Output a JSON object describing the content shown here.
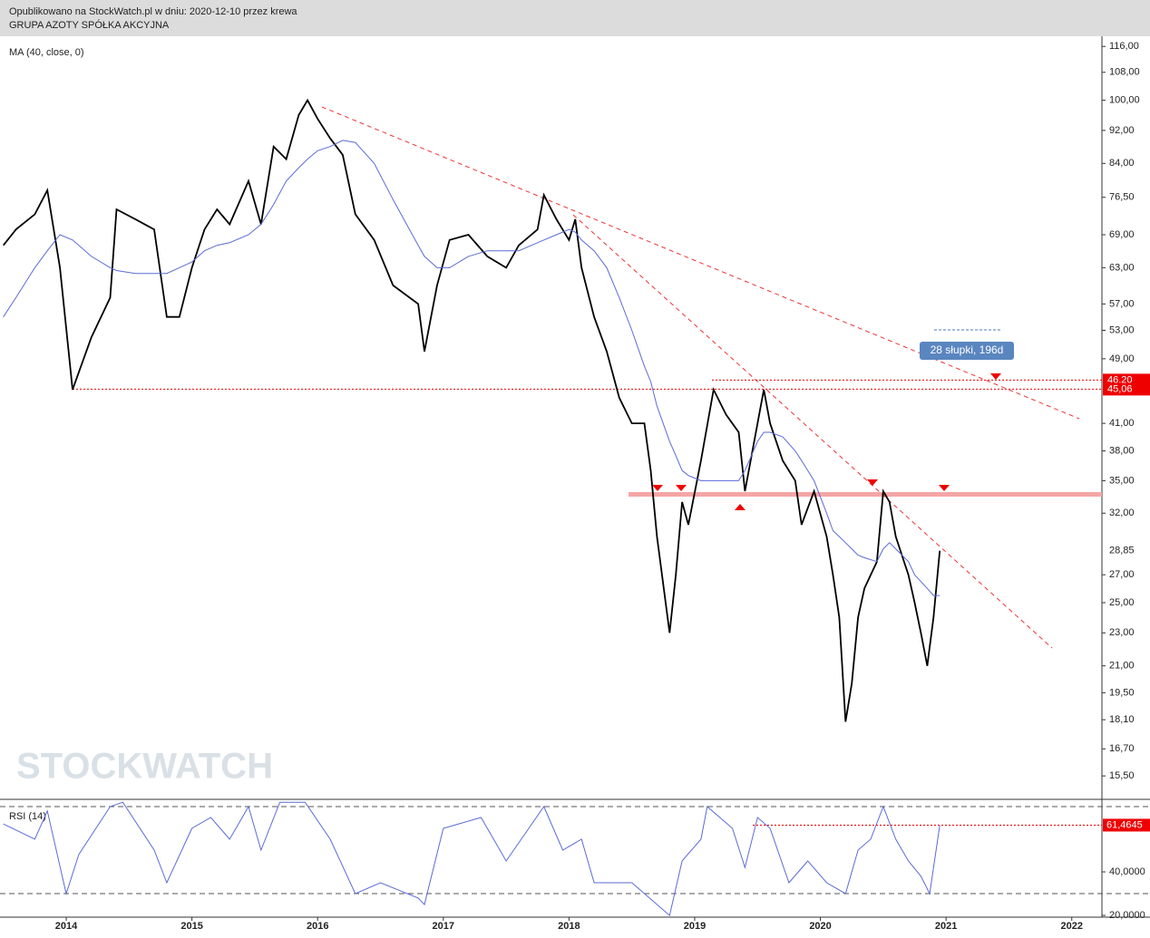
{
  "header": {
    "line1": "Opublikowano na StockWatch.pl w dniu: 2020-12-10 przez krewa",
    "line2": "GRUPA AZOTY SPÓŁKA AKCYJNA"
  },
  "watermark": "STOCKWATCH",
  "chart_data": [
    {
      "type": "line",
      "log_scale": true,
      "x": [
        2013.5,
        2013.6,
        2013.75,
        2013.85,
        2013.95,
        2014.05,
        2014.2,
        2014.35,
        2014.4,
        2014.55,
        2014.7,
        2014.8,
        2014.9,
        2015.0,
        2015.1,
        2015.2,
        2015.3,
        2015.45,
        2015.55,
        2015.65,
        2015.75,
        2015.85,
        2015.92,
        2016.0,
        2016.1,
        2016.2,
        2016.3,
        2016.45,
        2016.6,
        2016.8,
        2016.85,
        2016.95,
        2017.05,
        2017.2,
        2017.35,
        2017.5,
        2017.6,
        2017.75,
        2017.8,
        2017.9,
        2018.0,
        2018.05,
        2018.1,
        2018.2,
        2018.3,
        2018.4,
        2018.5,
        2018.6,
        2018.65,
        2018.7,
        2018.8,
        2018.85,
        2018.9,
        2018.95,
        2019.05,
        2019.15,
        2019.25,
        2019.35,
        2019.4,
        2019.5,
        2019.55,
        2019.6,
        2019.7,
        2019.8,
        2019.85,
        2019.95,
        2020.05,
        2020.1,
        2020.15,
        2020.2,
        2020.25,
        2020.3,
        2020.35,
        2020.45,
        2020.5,
        2020.55,
        2020.6,
        2020.7,
        2020.75,
        2020.8,
        2020.85,
        2020.9,
        2020.95
      ],
      "series": [
        {
          "color": "#000000",
          "values": [
            67,
            70,
            73,
            78,
            63,
            45,
            52,
            58,
            74,
            72,
            70,
            55,
            55,
            63,
            70,
            74,
            71,
            80,
            71,
            88,
            85,
            96,
            100,
            95,
            90,
            86,
            73,
            68,
            60,
            57,
            50,
            60,
            68,
            69,
            65,
            63,
            67,
            70,
            77,
            72,
            68,
            72,
            63,
            55,
            50,
            44,
            41,
            41,
            36,
            30,
            23,
            27,
            33,
            31,
            37,
            45,
            42,
            40,
            34,
            41,
            45,
            41,
            37,
            35,
            31,
            34,
            30,
            27,
            24,
            18,
            20,
            24,
            26,
            28,
            34,
            33,
            30,
            27,
            25,
            23,
            21,
            24,
            28.85
          ]
        },
        {
          "name": "MA (40, close, 0)",
          "color": "#5b6bd6",
          "values": [
            55,
            58,
            63,
            66,
            69,
            68,
            65,
            63,
            62.5,
            62,
            62,
            62,
            63,
            64,
            66,
            67,
            67.5,
            69,
            71,
            75,
            80,
            83,
            85,
            87,
            88,
            89.5,
            89,
            84,
            76,
            67,
            65,
            63,
            63,
            65,
            66,
            66,
            66,
            67.5,
            68,
            69,
            70,
            69.5,
            68,
            66,
            63,
            58,
            53,
            48,
            46,
            43,
            39,
            37.5,
            36,
            35.5,
            35,
            35,
            35,
            35,
            36,
            39,
            40,
            40,
            39.5,
            38,
            37,
            35,
            32,
            30.5,
            30,
            29.5,
            29,
            28.5,
            28.3,
            28,
            29,
            29.5,
            29,
            28,
            27,
            26.5,
            26,
            25.5,
            25.5
          ]
        }
      ],
      "xlim": [
        2013.473,
        2022.24
      ],
      "xticks": [
        2014,
        2015,
        2016,
        2017,
        2018,
        2019,
        2020,
        2021,
        2022
      ],
      "ylim": [
        14.53,
        119.3
      ],
      "yticks": [
        {
          "value": 116,
          "label": "116,00"
        },
        {
          "value": 108,
          "label": "108,00"
        },
        {
          "value": 100,
          "label": "100,00"
        },
        {
          "value": 92,
          "label": "92,00"
        },
        {
          "value": 84,
          "label": "84,00"
        },
        {
          "value": 76.5,
          "label": "76,50"
        },
        {
          "value": 69,
          "label": "69,00"
        },
        {
          "value": 63,
          "label": "63,00"
        },
        {
          "value": 57,
          "label": "57,00"
        },
        {
          "value": 53,
          "label": "53,00"
        },
        {
          "value": 49,
          "label": "49,00"
        },
        {
          "value": 41,
          "label": "41,00"
        },
        {
          "value": 38,
          "label": "38,00"
        },
        {
          "value": 35,
          "label": "35,00"
        },
        {
          "value": 32,
          "label": "32,00"
        },
        {
          "value": 27,
          "label": "27,00"
        },
        {
          "value": 25,
          "label": "25,00"
        },
        {
          "value": 23,
          "label": "23,00"
        },
        {
          "value": 21,
          "label": "21,00"
        },
        {
          "value": 19.5,
          "label": "19,50"
        },
        {
          "value": 18.1,
          "label": "18,10"
        },
        {
          "value": 16.7,
          "label": "16,70"
        },
        {
          "value": 15.5,
          "label": "15,50"
        }
      ],
      "last_price": {
        "value": 28.85,
        "label": "28,85"
      },
      "hlines": [
        {
          "value": 46.2,
          "label": "46,20"
        },
        {
          "value": 45.06,
          "label": "45,06"
        }
      ],
      "annotation": "28 słupki, 196d"
    },
    {
      "type": "line",
      "title": "RSI (14)",
      "x": [
        2013.5,
        2013.75,
        2013.85,
        2014.0,
        2014.1,
        2014.35,
        2014.45,
        2014.7,
        2014.8,
        2015.0,
        2015.15,
        2015.3,
        2015.45,
        2015.55,
        2015.7,
        2015.9,
        2016.1,
        2016.3,
        2016.5,
        2016.8,
        2016.85,
        2017.0,
        2017.3,
        2017.5,
        2017.8,
        2017.95,
        2018.1,
        2018.2,
        2018.5,
        2018.8,
        2018.9,
        2019.05,
        2019.1,
        2019.3,
        2019.4,
        2019.5,
        2019.6,
        2019.75,
        2019.9,
        2020.05,
        2020.2,
        2020.3,
        2020.4,
        2020.5,
        2020.6,
        2020.7,
        2020.8,
        2020.87,
        2020.95
      ],
      "series": [
        {
          "color": "#5b6bd6",
          "values": [
            62,
            55,
            68,
            30,
            48,
            70,
            72,
            50,
            35,
            60,
            65,
            55,
            70,
            50,
            72,
            72,
            55,
            30,
            35,
            28,
            25,
            60,
            65,
            45,
            70,
            50,
            55,
            35,
            35,
            20,
            45,
            55,
            70,
            60,
            42,
            65,
            60,
            35,
            45,
            35,
            30,
            50,
            55,
            70,
            55,
            45,
            38,
            30,
            61.4645
          ]
        }
      ],
      "xlim": [
        2013.473,
        2022.24
      ],
      "ylim": [
        19.2,
        72.9
      ],
      "yticks": [
        {
          "value": 40,
          "label": "40,0000"
        },
        {
          "value": 20,
          "label": "20,0000"
        }
      ],
      "levels": [
        70,
        30
      ],
      "last_value": {
        "value": 61.4645,
        "label": "61,4645"
      }
    }
  ]
}
